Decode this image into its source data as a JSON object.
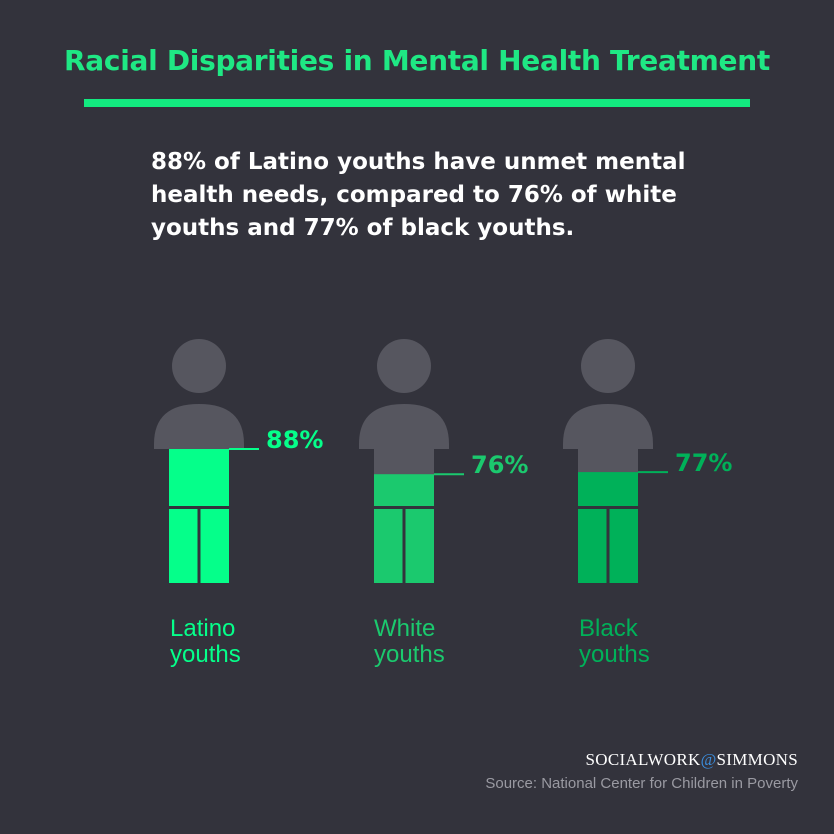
{
  "title": "Racial Disparities in Mental Health Treatment",
  "subtitle_lines": [
    "88% of Latino youths have unmet mental",
    "health needs, compared to 76% of white",
    "youths and 77% of black youths."
  ],
  "chart_data": {
    "type": "bar",
    "style": "pictogram fill (person silhouettes)",
    "categories": [
      "Latino youths",
      "White youths",
      "Black youths"
    ],
    "category_lines": [
      [
        "Latino",
        "youths"
      ],
      [
        "White",
        "youths"
      ],
      [
        "Black",
        "youths"
      ]
    ],
    "values": [
      88,
      76,
      77
    ],
    "data_labels": [
      "88%",
      "76%",
      "77%"
    ],
    "unit": "%",
    "colors": [
      "#05ff8a",
      "#1bc96e",
      "#00b159"
    ],
    "silhouette_color": "#56565f"
  },
  "brand": {
    "left": "SOCIALWORK",
    "at": "@",
    "right": "SIMMONS"
  },
  "source": "Source: National Center for Children in Poverty",
  "colors": {
    "background": "#33333c",
    "title": "#1fe884"
  }
}
